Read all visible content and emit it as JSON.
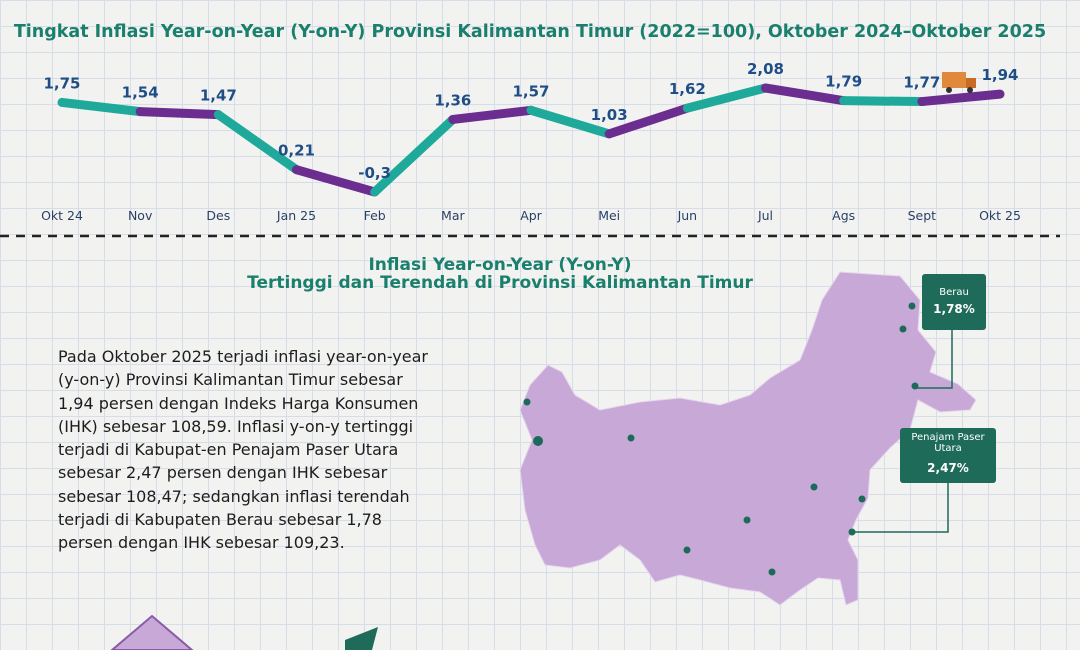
{
  "chart_data": {
    "type": "line",
    "title": "Tingkat Inflasi Year-on-Year (Y-on-Y) Provinsi Kalimantan Timur (2022=100), Oktober 2024–Oktober 2025",
    "categories": [
      "Okt 24",
      "Nov",
      "Des",
      "Jan 25",
      "Feb",
      "Mar",
      "Apr",
      "Mei",
      "Jun",
      "Jul",
      "Ags",
      "Sept",
      "Okt 25"
    ],
    "series": [
      {
        "name": "Inflasi Y-on-Y",
        "segment_colors": [
          "#1fa99a",
          "#6b2d8f"
        ],
        "values": [
          1.75,
          1.54,
          1.47,
          0.21,
          -0.3,
          1.36,
          1.57,
          1.03,
          1.62,
          2.08,
          1.79,
          1.77,
          1.94
        ],
        "value_labels": [
          "1,75",
          "1,54",
          "1,47",
          "0,21",
          "-0,3",
          "1,36",
          "1,57",
          "1,03",
          "1,62",
          "2,08",
          "1,79",
          "1,77",
          "1,94"
        ]
      }
    ]
  },
  "map_section": {
    "title_line1": "Inflasi Year-on-Year (Y-on-Y)",
    "title_line2": "Tertinggi dan Terendah di Provinsi Kalimantan Timur",
    "paragraph": "Pada Oktober 2025 terjadi inflasi year-on-year (y-on-y) Provinsi Kalimantan Timur sebesar 1,94 persen dengan Indeks Harga Konsumen (IHK) sebesar 108,59. Inflasi y-on-y tertinggi terjadi di Kabupat-en Penajam Paser Utara sebesar 2,47 persen dengan IHK sebesar sebesar 108,47; sedangkan inflasi terendah terjadi di Kabupaten Berau sebesar 1,78 persen dengan IHK sebesar 109,23.",
    "callouts": [
      {
        "name": "Berau",
        "value": "1,78%"
      },
      {
        "name": "Penajam Paser Utara",
        "value": "2,47%"
      }
    ]
  }
}
